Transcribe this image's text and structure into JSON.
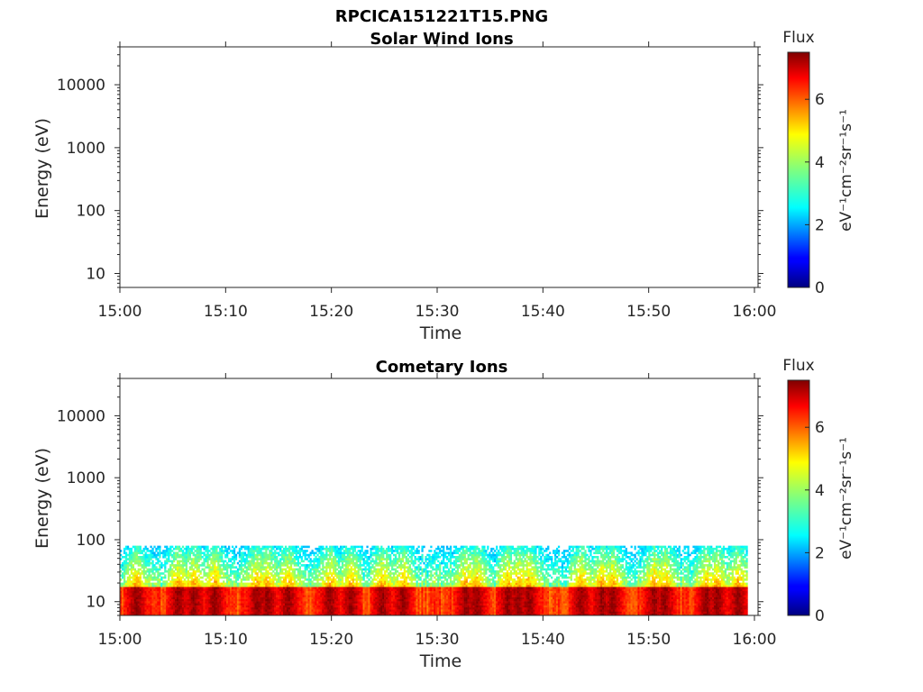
{
  "figure": {
    "title_line1": "RPCICA151221T15.PNG"
  },
  "chart_data": [
    {
      "type": "heatmap",
      "title": "Solar Wind Ions",
      "xlabel": "Time",
      "ylabel": "Energy (eV)",
      "yscale": "log",
      "ylim": [
        6,
        40000
      ],
      "x_tick_labels": [
        "15:00",
        "15:10",
        "15:20",
        "15:30",
        "15:40",
        "15:50",
        "16:00"
      ],
      "y_tick_labels": [
        "10",
        "100",
        "1000",
        "10000"
      ],
      "y_ticks": [
        10,
        100,
        1000,
        10000
      ],
      "colorbar": {
        "title": "Flux",
        "label": "eV⁻¹cm⁻²sr⁻¹s⁻¹",
        "range": [
          0,
          7.5
        ],
        "tick_labels": [
          "0",
          "2",
          "4",
          "6"
        ],
        "ticks": [
          0,
          2,
          4,
          6
        ],
        "colormap": "jet"
      },
      "grid": false,
      "data_summary": "no flux above background"
    },
    {
      "type": "heatmap",
      "title": "Cometary Ions",
      "xlabel": "Time",
      "ylabel": "Energy (eV)",
      "yscale": "log",
      "ylim": [
        6,
        40000
      ],
      "x_tick_labels": [
        "15:00",
        "15:10",
        "15:20",
        "15:30",
        "15:40",
        "15:50",
        "16:00"
      ],
      "y_tick_labels": [
        "10",
        "100",
        "1000",
        "10000"
      ],
      "y_ticks": [
        10,
        100,
        1000,
        10000
      ],
      "colorbar": {
        "title": "Flux",
        "label": "eV⁻¹cm⁻²sr⁻¹s⁻¹",
        "range": [
          0,
          7.5
        ],
        "tick_labels": [
          "0",
          "2",
          "4",
          "6"
        ],
        "ticks": [
          0,
          2,
          4,
          6
        ],
        "colormap": "jet"
      },
      "grid": false,
      "energy_range_with_flux": [
        6,
        80
      ],
      "max_flux_energy": 12,
      "peak_events_minutes": [
        1.5,
        5.5,
        7,
        9,
        13,
        14,
        16,
        20,
        22,
        25,
        27,
        33,
        34,
        37,
        38,
        39,
        44,
        46,
        47,
        51,
        52,
        56,
        57,
        59
      ]
    }
  ]
}
